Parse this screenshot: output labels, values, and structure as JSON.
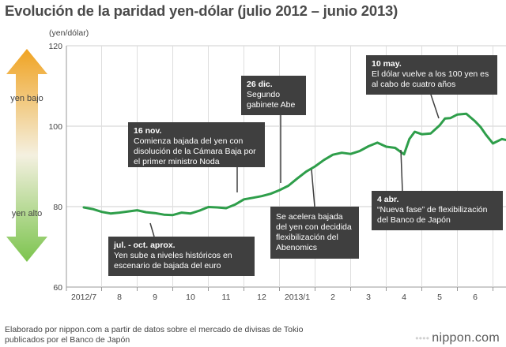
{
  "title": "Evolución de la paridad yen-dólar (julio 2012 – junio 2013)",
  "source_note_line1": "Elaborado por nippon.com a partir de datos sobre el mercado de divisas de Tokio",
  "source_note_line2": "publicados por el Banco de Japón",
  "brand": "nippon.com",
  "arrow": {
    "top_label": "yen bajo",
    "bottom_label": "yen alto",
    "top_color": "#f0a322",
    "bottom_color": "#7cc44e"
  },
  "line_color": "#2e9e4a",
  "chart_data": {
    "type": "line",
    "title": "Evolución de la paridad yen-dólar (julio 2012 – junio 2013)",
    "ylabel": "(yen/dólar)",
    "ylim": [
      60,
      120
    ],
    "yticks": [
      "60",
      "80",
      "100",
      "120"
    ],
    "xlim": [
      0,
      12.4
    ],
    "xticks": [
      {
        "x": 0,
        "label": "2012/7"
      },
      {
        "x": 1,
        "label": "8"
      },
      {
        "x": 2,
        "label": "9"
      },
      {
        "x": 3,
        "label": "10"
      },
      {
        "x": 4,
        "label": "11"
      },
      {
        "x": 5,
        "label": "12"
      },
      {
        "x": 6,
        "label": "2013/1"
      },
      {
        "x": 7,
        "label": "2"
      },
      {
        "x": 8,
        "label": "3"
      },
      {
        "x": 9,
        "label": "4"
      },
      {
        "x": 10,
        "label": "5"
      },
      {
        "x": 11,
        "label": "6"
      }
    ],
    "grid": true,
    "series": [
      {
        "x": [
          0,
          0.25,
          0.5,
          0.75,
          1.0,
          1.25,
          1.5,
          1.75,
          2.0,
          2.25,
          2.5,
          2.75,
          3.0,
          3.25,
          3.5,
          3.75,
          4.0,
          4.25,
          4.5,
          4.75,
          5.0,
          5.25,
          5.5,
          5.75,
          6.0,
          6.25,
          6.5,
          6.75,
          7.0,
          7.25,
          7.5,
          7.75,
          8.0,
          8.25,
          8.5,
          8.75,
          9.0,
          9.15,
          9.3,
          9.5,
          9.75,
          10.0,
          10.15,
          10.3,
          10.5,
          10.75,
          11.0,
          11.15,
          11.3,
          11.5,
          11.75,
          12.0,
          12.2,
          12.4
        ],
        "values": [
          79.8,
          79.4,
          78.7,
          78.3,
          78.5,
          78.8,
          79.1,
          78.6,
          78.4,
          78.0,
          77.9,
          78.5,
          78.3,
          79.0,
          79.9,
          79.8,
          79.6,
          80.5,
          81.8,
          82.2,
          82.6,
          83.2,
          84.1,
          85.2,
          87.0,
          88.7,
          90.0,
          91.6,
          92.9,
          93.4,
          93.1,
          93.8,
          95.0,
          95.9,
          94.9,
          94.6,
          93.0,
          96.8,
          98.6,
          98.0,
          98.2,
          100.2,
          101.9,
          102.0,
          102.9,
          103.1,
          101.2,
          99.8,
          97.9,
          95.7,
          96.8,
          96.3,
          97.6,
          98.0
        ]
      }
    ],
    "annotations": [
      {
        "x": 1.2,
        "head": "jul. - oct. aprox.",
        "body": "Yen sube a niveles históricos en escenario de bajada del euro"
      },
      {
        "x": 4.4,
        "head": "16 nov.",
        "body": "Comienza bajada del yen con disolución de la Cámara Baja por el primer ministro Noda"
      },
      {
        "x": 5.85,
        "head": "26 dic.",
        "body": "Segundo gabinete Abe"
      },
      {
        "x": 6.9,
        "head": "",
        "body": "Se acelera bajada del yen con decidida flexibilización del Abenomics"
      },
      {
        "x": 9.0,
        "head": "4 abr.",
        "body": "“Nueva fase” de flexibilización del Banco de Japón"
      },
      {
        "x": 9.9,
        "head": "10 may.",
        "body": "El dólar vuelve a los 100 yen es al cabo de cuatro años"
      }
    ]
  }
}
